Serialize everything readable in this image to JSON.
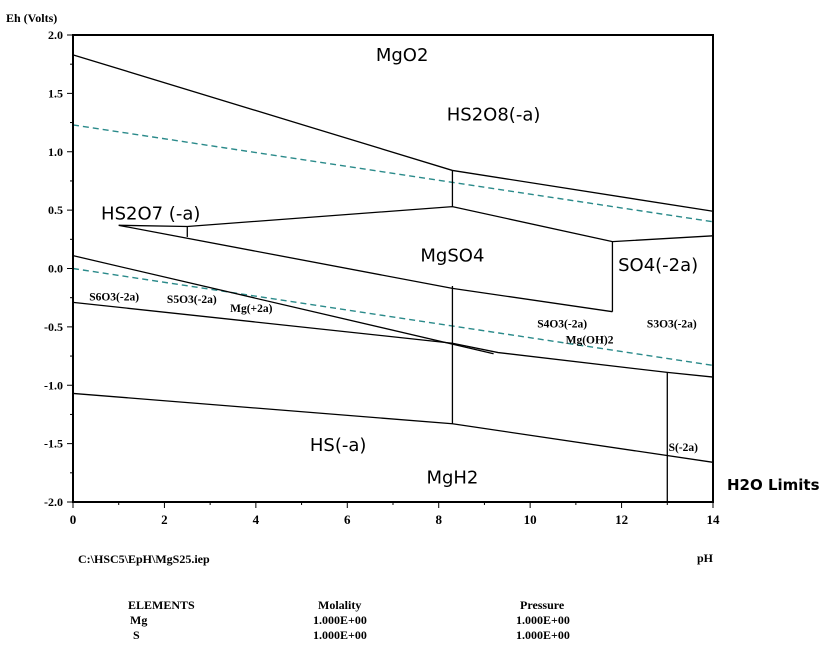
{
  "chart_data": {
    "type": "line",
    "ylabel": "Eh (Volts)",
    "xlabel": "pH",
    "xlim": [
      0,
      14
    ],
    "ylim": [
      -2.0,
      2.0
    ],
    "x_ticks": [
      "0",
      "2",
      "4",
      "6",
      "8",
      "10",
      "12",
      "14"
    ],
    "y_ticks": [
      "2.0",
      "1.5",
      "1.0",
      "0.5",
      "0.0",
      "-0.5",
      "-1.0",
      "-1.5",
      "-2.0"
    ],
    "legend_label": "H2O Limits",
    "boundaries": [
      {
        "name": "MgO2-HS2O8",
        "points": [
          [
            0,
            1.83
          ],
          [
            8.3,
            0.84
          ],
          [
            14,
            0.49
          ]
        ]
      },
      {
        "name": "v-8.3-upper",
        "points": [
          [
            8.3,
            0.84
          ],
          [
            8.3,
            0.53
          ]
        ]
      },
      {
        "name": "HS2O7-MgSO4",
        "points": [
          [
            1.0,
            0.37
          ],
          [
            2.5,
            0.36
          ],
          [
            8.3,
            0.53
          ],
          [
            11.8,
            0.23
          ],
          [
            14,
            0.28
          ]
        ]
      },
      {
        "name": "tick-2.5",
        "points": [
          [
            2.5,
            0.36
          ],
          [
            2.5,
            0.27
          ]
        ]
      },
      {
        "name": "MgSO4-lower",
        "points": [
          [
            1.0,
            0.37
          ],
          [
            8.3,
            -0.17
          ],
          [
            11.8,
            -0.37
          ]
        ]
      },
      {
        "name": "v-11.8",
        "points": [
          [
            11.8,
            0.23
          ],
          [
            11.8,
            -0.37
          ]
        ]
      },
      {
        "name": "S6O3-line",
        "points": [
          [
            0,
            0.11
          ],
          [
            9.2,
            -0.73
          ]
        ]
      },
      {
        "name": "Mg-line",
        "points": [
          [
            0,
            -0.29
          ],
          [
            8.3,
            -0.64
          ],
          [
            9.3,
            -0.72
          ],
          [
            13.0,
            -0.89
          ],
          [
            14,
            -0.93
          ]
        ]
      },
      {
        "name": "v-8.3-mid",
        "points": [
          [
            8.3,
            -0.15
          ],
          [
            8.3,
            -1.33
          ]
        ]
      },
      {
        "name": "v-13",
        "points": [
          [
            13.0,
            -0.89
          ],
          [
            13.0,
            -2.0
          ]
        ]
      },
      {
        "name": "HS-bottom",
        "points": [
          [
            0,
            -1.07
          ],
          [
            8.3,
            -1.33
          ],
          [
            14,
            -1.66
          ]
        ]
      }
    ],
    "water_limits": [
      {
        "name": "O2 limit",
        "points": [
          [
            0,
            1.23
          ],
          [
            14,
            0.4
          ]
        ]
      },
      {
        "name": "H2 limit",
        "points": [
          [
            0,
            0.0
          ],
          [
            14,
            -0.83
          ]
        ]
      }
    ],
    "region_labels": [
      {
        "text": "MgO2",
        "x": 7.2,
        "y": 1.83
      },
      {
        "text": "HS2O8(-a)",
        "x": 9.2,
        "y": 1.32
      },
      {
        "text": "HS2O7 (-a)",
        "x": 1.7,
        "y": 0.47
      },
      {
        "text": "MgSO4",
        "x": 8.3,
        "y": 0.11
      },
      {
        "text": "SO4(-2a)",
        "x": 12.8,
        "y": 0.03
      },
      {
        "text": "HS(-a)",
        "x": 5.8,
        "y": -1.51
      },
      {
        "text": "MgH2",
        "x": 8.3,
        "y": -1.79
      }
    ],
    "small_labels": [
      {
        "text": "S6O3(-2a)",
        "x": 0.9,
        "y": -0.24
      },
      {
        "text": "S5O3(-2a)",
        "x": 2.6,
        "y": -0.26
      },
      {
        "text": "Mg(+2a)",
        "x": 3.9,
        "y": -0.34
      },
      {
        "text": "S4O3(-2a)",
        "x": 10.7,
        "y": -0.47
      },
      {
        "text": "Mg(OH)2",
        "x": 11.3,
        "y": -0.61
      },
      {
        "text": "S3O3(-2a)",
        "x": 13.1,
        "y": -0.47
      },
      {
        "text": "S(-2a)",
        "x": 13.35,
        "y": -1.53
      }
    ]
  },
  "footer": {
    "file_path": "C:\\HSC5\\EpH\\MgS25.iep",
    "table": {
      "headers": [
        "ELEMENTS",
        "Molality",
        "Pressure"
      ],
      "rows": [
        [
          "Mg",
          "1.000E+00",
          "1.000E+00"
        ],
        [
          "S",
          "1.000E+00",
          "1.000E+00"
        ]
      ]
    }
  },
  "colors": {
    "axis": "#000000",
    "boundary": "#000000",
    "water_limit": "#2a8a8a"
  }
}
